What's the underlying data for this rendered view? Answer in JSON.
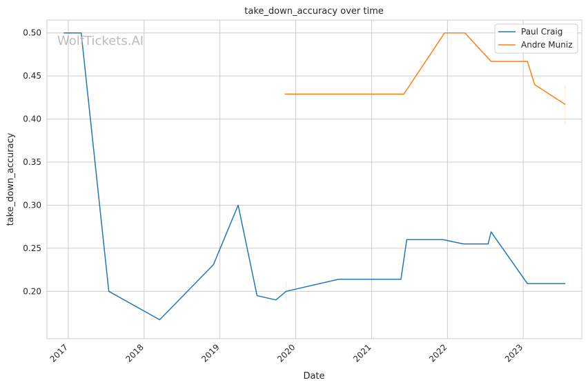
{
  "chart_data": {
    "type": "line",
    "title": "take_down_accuracy over time",
    "xlabel": "Date",
    "ylabel": "take_down_accuracy",
    "watermark": "WolfTickets.AI",
    "x_ticks": [
      "2017",
      "2018",
      "2019",
      "2020",
      "2021",
      "2022",
      "2023"
    ],
    "y_ticks": [
      "0.20",
      "0.25",
      "0.30",
      "0.35",
      "0.40",
      "0.45",
      "0.50"
    ],
    "xlim": [
      "2016-09-20",
      "2023-10-10"
    ],
    "ylim": [
      0.145,
      0.515
    ],
    "grid": true,
    "legend_position": "top-right",
    "series": [
      {
        "name": "Paul Craig",
        "color": "#1f77b4",
        "points": [
          [
            "2016-12-10",
            0.5
          ],
          [
            "2017-03-04",
            0.5
          ],
          [
            "2017-07-15",
            0.2
          ],
          [
            "2018-03-17",
            0.167
          ],
          [
            "2018-12-01",
            0.231
          ],
          [
            "2019-03-30",
            0.3
          ],
          [
            "2019-06-29",
            0.195
          ],
          [
            "2019-09-28",
            0.19
          ],
          [
            "2019-11-16",
            0.2
          ],
          [
            "2020-07-25",
            0.214
          ],
          [
            "2021-05-22",
            0.214
          ],
          [
            "2021-06-19",
            0.26
          ],
          [
            "2021-12-11",
            0.26
          ],
          [
            "2022-03-19",
            0.255
          ],
          [
            "2022-07-16",
            0.255
          ],
          [
            "2022-07-30",
            0.269
          ],
          [
            "2023-01-21",
            0.209
          ],
          [
            "2023-07-22",
            0.209
          ]
        ]
      },
      {
        "name": "Andre Muniz",
        "color": "#ff7f0e",
        "points": [
          [
            "2019-11-09",
            0.429
          ],
          [
            "2021-06-05",
            0.429
          ],
          [
            "2021-12-18",
            0.5
          ],
          [
            "2022-03-26",
            0.5
          ],
          [
            "2022-07-30",
            0.467
          ],
          [
            "2023-01-21",
            0.467
          ],
          [
            "2023-02-25",
            0.44
          ],
          [
            "2023-07-22",
            0.417
          ]
        ]
      }
    ]
  }
}
